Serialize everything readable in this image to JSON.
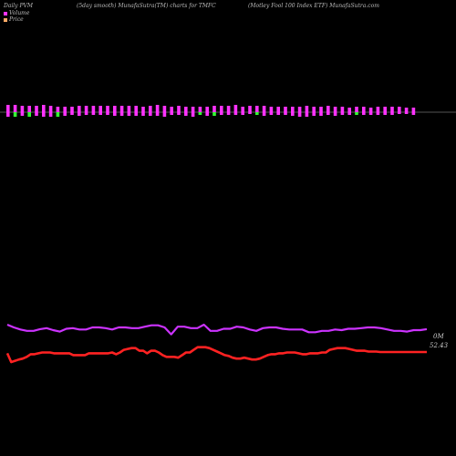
{
  "header": {
    "left": "Daily PVM",
    "middle": "(5day smooth) MunafaSutra(TM) charts for TMFC",
    "right": "(Motley Fool 100  Index ETF) MunafaSutra.com"
  },
  "legend": [
    {
      "label": "Volume",
      "color": "#ff33ff"
    },
    {
      "label": "Price",
      "color": "#ffaa66"
    }
  ],
  "colors": {
    "up_bar": "#ff33ff",
    "down_bar": "#33ff33",
    "purple_line": "#cc33ff",
    "red_line": "#ff2222",
    "baseline": "#aaaaaa"
  },
  "chart_data": {
    "type": "line",
    "title": "",
    "labels": {
      "volume": "0M",
      "price": "52.43"
    },
    "bars": {
      "up": [
        8,
        8,
        7,
        7,
        7,
        8,
        7,
        6,
        6,
        6,
        7,
        7,
        7,
        7,
        7,
        7,
        7,
        7,
        7,
        6,
        7,
        8,
        7,
        6,
        7,
        6,
        6,
        6,
        6,
        7,
        7,
        7,
        8,
        6,
        7,
        7,
        7,
        6,
        6,
        6,
        6,
        6,
        7,
        6,
        6,
        7,
        6,
        6,
        5,
        6,
        6,
        5,
        6,
        6,
        6,
        6,
        5,
        5
      ],
      "down": [
        5,
        5,
        4,
        5,
        4,
        5,
        5,
        5,
        4,
        3,
        4,
        3,
        3,
        3,
        3,
        4,
        4,
        4,
        4,
        4,
        4,
        4,
        5,
        3,
        3,
        4,
        5,
        3,
        4,
        4,
        3,
        3,
        3,
        3,
        2,
        3,
        4,
        3,
        3,
        3,
        4,
        5,
        5,
        4,
        4,
        3,
        4,
        3,
        3,
        3,
        3,
        3,
        3,
        3,
        3,
        2,
        2,
        3
      ],
      "down_is_green": [
        false,
        true,
        false,
        true,
        false,
        false,
        false,
        true,
        false,
        false,
        false,
        false,
        false,
        false,
        false,
        false,
        false,
        false,
        false,
        false,
        false,
        false,
        false,
        false,
        false,
        false,
        false,
        true,
        false,
        true,
        false,
        false,
        false,
        false,
        false,
        true,
        false,
        false,
        false,
        false,
        false,
        false,
        false,
        false,
        false,
        false,
        false,
        false,
        false,
        true,
        false,
        false,
        false,
        false,
        false,
        false,
        false,
        false
      ]
    },
    "series": [
      {
        "values": [
          0.58,
          0.5,
          0.44,
          0.4,
          0.4,
          0.45,
          0.48,
          0.42,
          0.38,
          0.46,
          0.48,
          0.44,
          0.44,
          0.5,
          0.5,
          0.48,
          0.44,
          0.5,
          0.5,
          0.48,
          0.48,
          0.52,
          0.56,
          0.56,
          0.5,
          0.3,
          0.52,
          0.52,
          0.48,
          0.48,
          0.58,
          0.4,
          0.4,
          0.46,
          0.46,
          0.52,
          0.5,
          0.44,
          0.4,
          0.48,
          0.5,
          0.5,
          0.46,
          0.44,
          0.44,
          0.44,
          0.36,
          0.36,
          0.4,
          0.4,
          0.44,
          0.42,
          0.46,
          0.46,
          0.48,
          0.5,
          0.5,
          0.48,
          0.44,
          0.4,
          0.4,
          0.38,
          0.42,
          0.42,
          0.45
        ]
      },
      {
        "values": [
          0.22,
          0.02,
          0.05,
          0.08,
          0.1,
          0.14,
          0.2,
          0.2,
          0.22,
          0.24,
          0.24,
          0.24,
          0.22,
          0.22,
          0.22,
          0.22,
          0.22,
          0.18,
          0.18,
          0.18,
          0.18,
          0.22,
          0.22,
          0.22,
          0.22,
          0.22,
          0.22,
          0.24,
          0.2,
          0.24,
          0.3,
          0.32,
          0.34,
          0.34,
          0.28,
          0.28,
          0.22,
          0.28,
          0.28,
          0.24,
          0.18,
          0.14,
          0.14,
          0.14,
          0.12,
          0.18,
          0.24,
          0.24,
          0.3,
          0.36,
          0.36,
          0.36,
          0.34,
          0.3,
          0.26,
          0.22,
          0.18,
          0.16,
          0.12,
          0.1,
          0.1,
          0.12,
          0.1,
          0.08,
          0.08,
          0.1,
          0.14,
          0.18,
          0.2,
          0.2,
          0.22,
          0.22,
          0.24,
          0.24,
          0.24,
          0.22,
          0.2,
          0.2,
          0.22,
          0.22,
          0.22,
          0.24,
          0.24,
          0.3,
          0.32,
          0.34,
          0.34,
          0.34,
          0.32,
          0.3,
          0.28,
          0.28,
          0.28,
          0.26,
          0.26,
          0.26,
          0.25,
          0.25,
          0.25,
          0.25,
          0.25,
          0.25,
          0.25,
          0.25,
          0.25,
          0.25,
          0.25,
          0.25,
          0.25
        ]
      }
    ]
  }
}
